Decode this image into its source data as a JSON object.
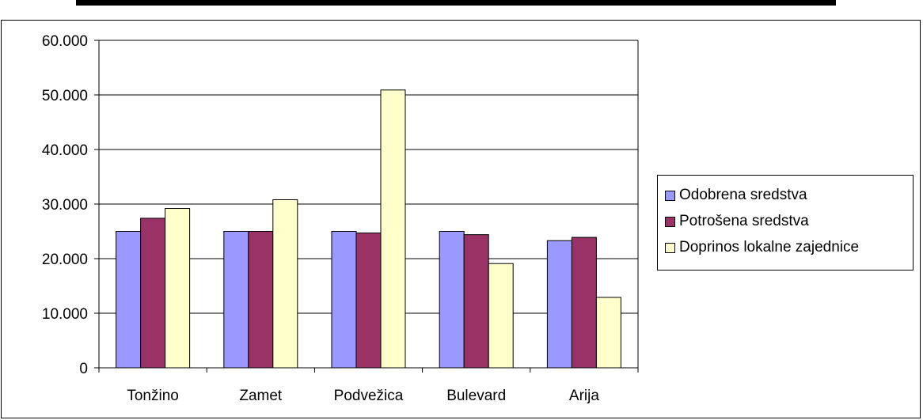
{
  "chart_data": {
    "type": "bar",
    "title": "",
    "xlabel": "",
    "ylabel": "",
    "categories": [
      "Tonžino",
      "Zamet",
      "Podvežica",
      "Bulevard",
      "Arija"
    ],
    "series": [
      {
        "name": "Odobrena sredstva",
        "color": "#9999FF",
        "values": [
          25000,
          25000,
          25000,
          25000,
          23300
        ]
      },
      {
        "name": "Potrošena sredstva",
        "color": "#993366",
        "values": [
          27400,
          25000,
          24700,
          24400,
          23900
        ]
      },
      {
        "name": "Doprinos lokalne zajednice",
        "color": "#FFFFCC",
        "values": [
          29200,
          30800,
          50900,
          19100,
          12900
        ]
      }
    ],
    "ylim": [
      0,
      60000
    ],
    "yticks": [
      0,
      10000,
      20000,
      30000,
      40000,
      50000,
      60000
    ],
    "ytick_labels": [
      "0",
      "10.000",
      "20.000",
      "30.000",
      "40.000",
      "50.000",
      "60.000"
    ],
    "grid": true,
    "legend_position": "right"
  }
}
